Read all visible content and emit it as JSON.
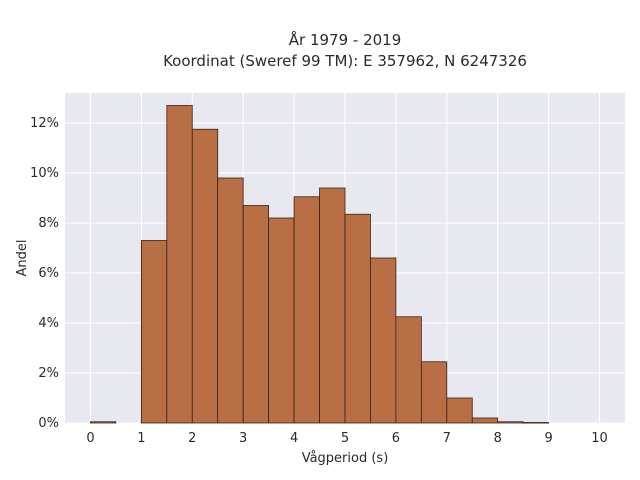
{
  "chart_data": {
    "type": "bar",
    "title_line1": "År 1979 - 2019",
    "title_line2": "Koordinat (Sweref 99 TM): E 357962, N 6247326",
    "xlabel": "Vågperiod (s)",
    "ylabel": "Andel",
    "bin_width": 0.5,
    "bins": [
      {
        "x": 0.0,
        "value": 0.05
      },
      {
        "x": 1.0,
        "value": 7.3
      },
      {
        "x": 1.5,
        "value": 12.7
      },
      {
        "x": 2.0,
        "value": 11.75
      },
      {
        "x": 2.5,
        "value": 9.8
      },
      {
        "x": 3.0,
        "value": 8.7
      },
      {
        "x": 3.5,
        "value": 8.2
      },
      {
        "x": 4.0,
        "value": 9.05
      },
      {
        "x": 4.5,
        "value": 9.4
      },
      {
        "x": 5.0,
        "value": 8.35
      },
      {
        "x": 5.5,
        "value": 6.6
      },
      {
        "x": 6.0,
        "value": 4.25
      },
      {
        "x": 6.5,
        "value": 2.45
      },
      {
        "x": 7.0,
        "value": 1.0
      },
      {
        "x": 7.5,
        "value": 0.2
      },
      {
        "x": 8.0,
        "value": 0.05
      },
      {
        "x": 8.5,
        "value": 0.02
      }
    ],
    "xticks": [
      0,
      1,
      2,
      3,
      4,
      5,
      6,
      7,
      8,
      9,
      10
    ],
    "yticks": [
      0,
      2,
      4,
      6,
      8,
      10,
      12
    ],
    "ytick_suffix": "%",
    "xlim": [
      -0.5,
      10.5
    ],
    "ylim": [
      0,
      13.2
    ],
    "grid": true,
    "colors": {
      "bar_fill": "#b86f45",
      "bar_stroke": "#3b2316",
      "plot_bg": "#e8e8f0",
      "grid": "#ffffff"
    }
  }
}
